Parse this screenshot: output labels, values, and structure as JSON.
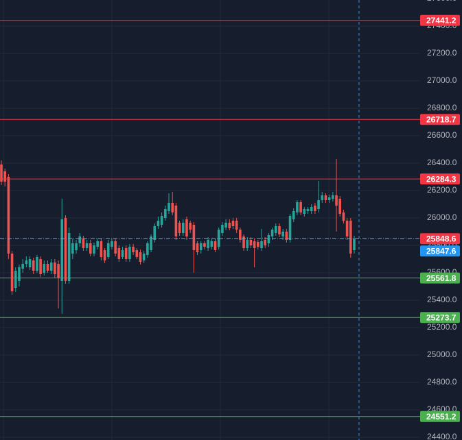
{
  "chart_data": {
    "type": "candlestick",
    "ylim": [
      24380,
      27590
    ],
    "yticks": [
      {
        "value": 24400,
        "label": "24400.0"
      },
      {
        "value": 24600,
        "label": "24600.0"
      },
      {
        "value": 24800,
        "label": "24800.0"
      },
      {
        "value": 25000,
        "label": "25000.0"
      },
      {
        "value": 25200,
        "label": "25200.0"
      },
      {
        "value": 25400,
        "label": "25400.0"
      },
      {
        "value": 25600,
        "label": "25600.0"
      },
      {
        "value": 25800,
        "label": "25800.0"
      },
      {
        "value": 26000,
        "label": "26000.0"
      },
      {
        "value": 26200,
        "label": "26200.0"
      },
      {
        "value": 26400,
        "label": "26400.0"
      },
      {
        "value": 26600,
        "label": "26600.0"
      },
      {
        "value": 26800,
        "label": "26800.0"
      },
      {
        "value": 27000,
        "label": "27000.0"
      },
      {
        "value": 27200,
        "label": "27200.0"
      },
      {
        "value": 27400,
        "label": "27400.0"
      },
      {
        "value": 27600,
        "label": "27600.0"
      }
    ],
    "up_color": "#26a69a",
    "down_color": "#ef5350",
    "open": [
      26390,
      26340,
      26300,
      25740,
      25490,
      25540,
      25630,
      25665,
      25640,
      25690,
      25615,
      25700,
      25600,
      25665,
      25615,
      25675,
      25665,
      25540,
      26000,
      25540,
      25740,
      25765,
      25815,
      25850,
      25780,
      25815,
      25740,
      25790,
      25830,
      25765,
      25715,
      25790,
      25830,
      25780,
      25715,
      25780,
      25700,
      25790,
      25765,
      25750,
      25690,
      25730,
      25765,
      25840,
      25940,
      25950,
      26000,
      26050,
      26110,
      26090,
      25965,
      25890,
      25990,
      25965,
      25950,
      25815,
      25765,
      25815,
      25780,
      25790,
      25830,
      25790,
      25890,
      25930,
      25965,
      25980,
      25980,
      25915,
      25865,
      25780,
      25840,
      25830,
      25825,
      25780,
      25840,
      25815,
      25865,
      25890,
      25940,
      25865,
      25900,
      25840,
      25990,
      26040,
      26115,
      26030,
      26050,
      26050,
      26090,
      26065,
      26130,
      26165,
      26130,
      26140,
      26165,
      26140,
      26040,
      25980,
      25980,
      25765
    ],
    "high": [
      26420,
      26360,
      26320,
      25760,
      25640,
      25660,
      25700,
      25720,
      25720,
      25710,
      25730,
      25720,
      25690,
      25690,
      25700,
      25700,
      25690,
      26140,
      26020,
      25930,
      25850,
      25840,
      25890,
      25870,
      25840,
      25840,
      25820,
      25850,
      25850,
      25780,
      25840,
      25850,
      25850,
      25800,
      25790,
      25800,
      25810,
      25810,
      25780,
      25770,
      25760,
      25830,
      25880,
      25960,
      26010,
      26040,
      26090,
      26180,
      26190,
      26110,
      25980,
      25990,
      26010,
      25980,
      25970,
      25830,
      25830,
      25830,
      25860,
      25850,
      25850,
      25930,
      25970,
      25990,
      25990,
      26000,
      26000,
      25930,
      25880,
      25860,
      25860,
      25850,
      25840,
      25920,
      25860,
      25890,
      25930,
      25960,
      25960,
      25920,
      25920,
      26030,
      26070,
      26130,
      26130,
      26080,
      26080,
      26100,
      26110,
      26270,
      26190,
      26180,
      26170,
      26190,
      26430,
      26160,
      26060,
      26000,
      26000,
      25870
    ],
    "low": [
      26240,
      26230,
      25700,
      25440,
      25460,
      25500,
      25600,
      25640,
      25620,
      25590,
      25600,
      25570,
      25580,
      25600,
      25590,
      25560,
      25340,
      25300,
      25520,
      25520,
      25700,
      25740,
      25790,
      25760,
      25760,
      25720,
      25720,
      25770,
      25690,
      25670,
      25700,
      25770,
      25720,
      25680,
      25700,
      25680,
      25680,
      25730,
      25700,
      25660,
      25670,
      25710,
      25750,
      25820,
      25920,
      25930,
      25980,
      26030,
      26020,
      25840,
      25870,
      25870,
      25840,
      25890,
      25600,
      25730,
      25740,
      25770,
      25760,
      25770,
      25750,
      25770,
      25870,
      25910,
      25910,
      25920,
      25890,
      25820,
      25760,
      25760,
      25780,
      25640,
      25770,
      25760,
      25780,
      25790,
      25840,
      25870,
      25860,
      25840,
      25820,
      25820,
      25970,
      26020,
      26020,
      26010,
      26030,
      26030,
      26030,
      26040,
      26110,
      26110,
      26110,
      26120,
      25900,
      26010,
      25960,
      25840,
      25710,
      25740
    ],
    "close": [
      26265,
      26265,
      25740,
      25465,
      25615,
      25640,
      25665,
      25690,
      25700,
      25615,
      25715,
      25590,
      25665,
      25615,
      25675,
      25590,
      25565,
      25990,
      25540,
      25890,
      25815,
      25815,
      25865,
      25780,
      25815,
      25740,
      25800,
      25830,
      25715,
      25690,
      25815,
      25830,
      25740,
      25700,
      25765,
      25700,
      25790,
      25750,
      25715,
      25680,
      25740,
      25815,
      25865,
      25940,
      25980,
      26015,
      26065,
      26110,
      26040,
      25865,
      25890,
      25965,
      25865,
      25915,
      25765,
      25750,
      25815,
      25790,
      25840,
      25830,
      25765,
      25915,
      25950,
      25965,
      25925,
      25940,
      25915,
      25840,
      25780,
      25840,
      25800,
      25780,
      25790,
      25830,
      25800,
      25875,
      25915,
      25940,
      25880,
      25900,
      25840,
      26015,
      26050,
      26115,
      26040,
      26065,
      26065,
      26080,
      26050,
      26130,
      26165,
      26130,
      26150,
      26165,
      26090,
      26030,
      25980,
      25865,
      25740,
      25848.6
    ],
    "price_lines": [
      {
        "value": 27441.2,
        "color": "#f23645"
      },
      {
        "value": 26718.7,
        "color": "#f23645"
      },
      {
        "value": 26284.3,
        "color": "#f23645"
      },
      {
        "value": 25561.8,
        "color": "#4caf50"
      },
      {
        "value": 25273.7,
        "color": "#4caf50"
      },
      {
        "value": 24551.2,
        "color": "#4caf50"
      }
    ],
    "last_price": {
      "value": 25848.6,
      "color": "#f23645"
    },
    "marker_price": {
      "value": 25847.6,
      "color": "#2196f3"
    }
  }
}
